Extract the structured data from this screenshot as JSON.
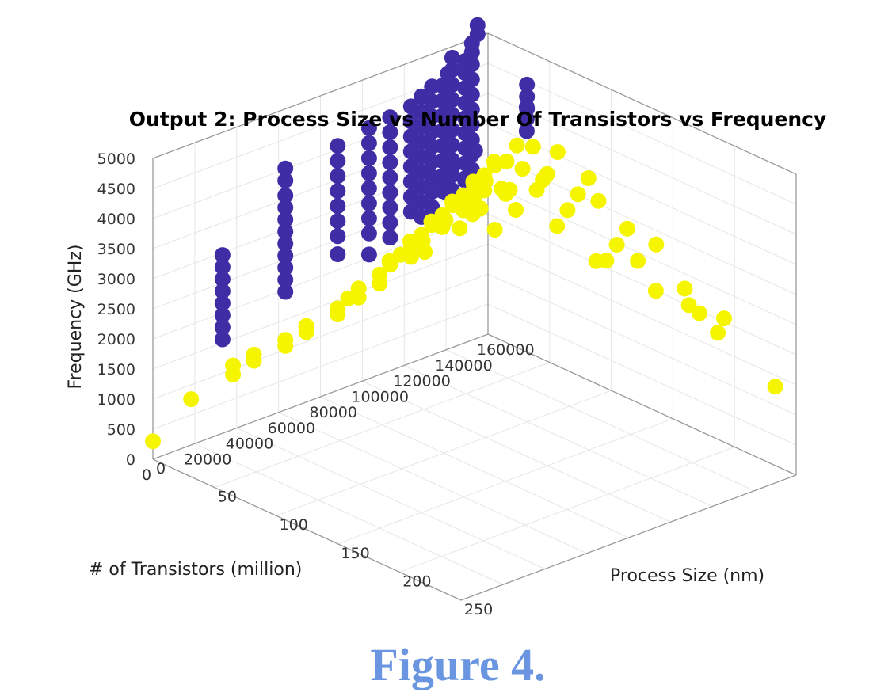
{
  "chart_data": {
    "type": "scatter3d",
    "title": "Output 2: Process Size vs Number Of Transistors vs Frequency",
    "x_axis": {
      "label": "# of Transistors (million)",
      "range": [
        0,
        160000
      ],
      "ticks": [
        "0",
        "20000",
        "40000",
        "60000",
        "80000",
        "100000",
        "120000",
        "140000",
        "160000"
      ]
    },
    "y_axis": {
      "label": "Process Size (nm)",
      "range": [
        0,
        250
      ],
      "ticks": [
        "0",
        "50",
        "100",
        "150",
        "200",
        "250"
      ]
    },
    "z_axis": {
      "label": "Frequency (GHz)",
      "range": [
        0,
        5000
      ],
      "ticks": [
        "0",
        "500",
        "1000",
        "1500",
        "2000",
        "2500",
        "3000",
        "3500",
        "4000",
        "4500",
        "5000"
      ]
    },
    "grid": true,
    "series": [
      {
        "color": "#3f2da6",
        "points": [
          [
            155000,
            0,
            5200
          ],
          [
            155000,
            0,
            5050
          ],
          [
            150000,
            4,
            5000
          ],
          [
            150000,
            4,
            4850
          ],
          [
            150000,
            4,
            4650
          ],
          [
            150000,
            4,
            4400
          ],
          [
            150000,
            4,
            4150
          ],
          [
            150000,
            4,
            3900
          ],
          [
            150000,
            4,
            3650
          ],
          [
            150000,
            4,
            3400
          ],
          [
            150000,
            4,
            3150
          ],
          [
            150000,
            4,
            2900
          ],
          [
            145000,
            7,
            4800
          ],
          [
            145000,
            7,
            4600
          ],
          [
            145000,
            7,
            4350
          ],
          [
            145000,
            7,
            4100
          ],
          [
            145000,
            7,
            3850
          ],
          [
            145000,
            7,
            3600
          ],
          [
            145000,
            7,
            3350
          ],
          [
            145000,
            7,
            3100
          ],
          [
            145000,
            7,
            2850
          ],
          [
            140000,
            5,
            4900
          ],
          [
            140000,
            5,
            4700
          ],
          [
            140000,
            5,
            4450
          ],
          [
            140000,
            5,
            4200
          ],
          [
            140000,
            5,
            3950
          ],
          [
            140000,
            5,
            3700
          ],
          [
            140000,
            5,
            3450
          ],
          [
            140000,
            5,
            3200
          ],
          [
            140000,
            5,
            2950
          ],
          [
            140000,
            5,
            2700
          ],
          [
            135000,
            10,
            4750
          ],
          [
            135000,
            10,
            4500
          ],
          [
            135000,
            10,
            4250
          ],
          [
            135000,
            10,
            4000
          ],
          [
            135000,
            10,
            3750
          ],
          [
            135000,
            10,
            3500
          ],
          [
            135000,
            10,
            3250
          ],
          [
            135000,
            10,
            3000
          ],
          [
            135000,
            10,
            2750
          ],
          [
            130000,
            14,
            4650
          ],
          [
            130000,
            14,
            4400
          ],
          [
            130000,
            14,
            4150
          ],
          [
            130000,
            14,
            3900
          ],
          [
            130000,
            14,
            3650
          ],
          [
            130000,
            14,
            3400
          ],
          [
            130000,
            14,
            3150
          ],
          [
            130000,
            14,
            2900
          ],
          [
            125000,
            14,
            4700
          ],
          [
            125000,
            14,
            4450
          ],
          [
            125000,
            14,
            4200
          ],
          [
            125000,
            14,
            3950
          ],
          [
            125000,
            14,
            3700
          ],
          [
            125000,
            14,
            3450
          ],
          [
            125000,
            14,
            3200
          ],
          [
            125000,
            14,
            2950
          ],
          [
            125000,
            14,
            2700
          ],
          [
            125000,
            14,
            2450
          ],
          [
            120000,
            14,
            4600
          ],
          [
            120000,
            14,
            4350
          ],
          [
            120000,
            14,
            4100
          ],
          [
            120000,
            14,
            3850
          ],
          [
            120000,
            14,
            3600
          ],
          [
            120000,
            14,
            3350
          ],
          [
            120000,
            14,
            3100
          ],
          [
            120000,
            14,
            2850
          ],
          [
            120000,
            14,
            2600
          ],
          [
            115000,
            14,
            4500
          ],
          [
            115000,
            14,
            4250
          ],
          [
            115000,
            14,
            4000
          ],
          [
            115000,
            14,
            3750
          ],
          [
            115000,
            14,
            3500
          ],
          [
            115000,
            14,
            3250
          ],
          [
            115000,
            14,
            3000
          ],
          [
            115000,
            14,
            2750
          ],
          [
            105000,
            14,
            4450
          ],
          [
            105000,
            14,
            4200
          ],
          [
            105000,
            14,
            3950
          ],
          [
            105000,
            14,
            3700
          ],
          [
            105000,
            14,
            3450
          ],
          [
            105000,
            14,
            3200
          ],
          [
            105000,
            14,
            2950
          ],
          [
            105000,
            14,
            2700
          ],
          [
            105000,
            14,
            2450
          ],
          [
            95000,
            14,
            4400
          ],
          [
            95000,
            14,
            4150
          ],
          [
            95000,
            14,
            3900
          ],
          [
            95000,
            14,
            3650
          ],
          [
            95000,
            14,
            3400
          ],
          [
            95000,
            14,
            3150
          ],
          [
            95000,
            14,
            2900
          ],
          [
            95000,
            14,
            2650
          ],
          [
            95000,
            14,
            2300
          ],
          [
            80000,
            14,
            4300
          ],
          [
            80000,
            14,
            4050
          ],
          [
            80000,
            14,
            3800
          ],
          [
            80000,
            14,
            3550
          ],
          [
            80000,
            14,
            3300
          ],
          [
            80000,
            14,
            3050
          ],
          [
            80000,
            14,
            2800
          ],
          [
            80000,
            14,
            2500
          ],
          [
            55000,
            14,
            4250
          ],
          [
            55000,
            14,
            4050
          ],
          [
            55000,
            14,
            3800
          ],
          [
            55000,
            14,
            3600
          ],
          [
            55000,
            14,
            3400
          ],
          [
            55000,
            14,
            3200
          ],
          [
            55000,
            14,
            3000
          ],
          [
            55000,
            14,
            2800
          ],
          [
            55000,
            14,
            2600
          ],
          [
            55000,
            14,
            2400
          ],
          [
            55000,
            14,
            2200
          ],
          [
            25000,
            14,
            3200
          ],
          [
            25000,
            14,
            3000
          ],
          [
            25000,
            14,
            2800
          ],
          [
            25000,
            14,
            2600
          ],
          [
            25000,
            14,
            2400
          ],
          [
            25000,
            14,
            2200
          ],
          [
            25000,
            14,
            2000
          ],
          [
            25000,
            14,
            1800
          ],
          [
            152000,
            45,
            4300
          ],
          [
            152000,
            45,
            4100
          ],
          [
            152000,
            45,
            3900
          ],
          [
            158000,
            35,
            4500
          ],
          [
            158000,
            35,
            4300
          ],
          [
            158000,
            35,
            4100
          ],
          [
            138000,
            10,
            3200
          ],
          [
            142000,
            12,
            2900
          ],
          [
            148000,
            10,
            3300
          ],
          [
            132000,
            10,
            3000
          ]
        ]
      },
      {
        "color": "#f5f500",
        "points": [
          [
            0,
            0,
            300
          ],
          [
            10000,
            14,
            1000
          ],
          [
            30000,
            14,
            1300
          ],
          [
            30000,
            14,
            1150
          ],
          [
            40000,
            14,
            1350
          ],
          [
            40000,
            14,
            1250
          ],
          [
            55000,
            14,
            1400
          ],
          [
            55000,
            14,
            1300
          ],
          [
            65000,
            14,
            1500
          ],
          [
            65000,
            14,
            1400
          ],
          [
            80000,
            14,
            1600
          ],
          [
            80000,
            14,
            1500
          ],
          [
            85000,
            14,
            1700
          ],
          [
            90000,
            14,
            1800
          ],
          [
            90000,
            14,
            1650
          ],
          [
            100000,
            14,
            1900
          ],
          [
            100000,
            14,
            1750
          ],
          [
            105000,
            14,
            2000
          ],
          [
            110000,
            14,
            2100
          ],
          [
            115000,
            14,
            2200
          ],
          [
            115000,
            14,
            2000
          ],
          [
            120000,
            14,
            2300
          ],
          [
            125000,
            14,
            2400
          ],
          [
            130000,
            14,
            2500
          ],
          [
            130000,
            14,
            2300
          ],
          [
            135000,
            14,
            2600
          ],
          [
            140000,
            14,
            2700
          ],
          [
            140000,
            14,
            2450
          ],
          [
            145000,
            14,
            2800
          ],
          [
            145000,
            14,
            2550
          ],
          [
            150000,
            14,
            2900
          ],
          [
            150000,
            14,
            2650
          ],
          [
            155000,
            14,
            3000
          ],
          [
            100000,
            22,
            2200
          ],
          [
            110000,
            22,
            2400
          ],
          [
            120000,
            22,
            2600
          ],
          [
            130000,
            22,
            2800
          ],
          [
            140000,
            22,
            3000
          ],
          [
            150000,
            22,
            3200
          ],
          [
            110000,
            32,
            2500
          ],
          [
            120000,
            32,
            2700
          ],
          [
            130000,
            32,
            2900
          ],
          [
            140000,
            32,
            3100
          ],
          [
            150000,
            32,
            3300
          ],
          [
            155000,
            32,
            3500
          ],
          [
            120000,
            45,
            2700
          ],
          [
            130000,
            45,
            2900
          ],
          [
            140000,
            45,
            3100
          ],
          [
            150000,
            45,
            3300
          ],
          [
            155000,
            45,
            3600
          ],
          [
            125000,
            65,
            2800
          ],
          [
            135000,
            65,
            3000
          ],
          [
            145000,
            65,
            3200
          ],
          [
            150000,
            65,
            3400
          ],
          [
            155000,
            65,
            3700
          ],
          [
            140000,
            90,
            2900
          ],
          [
            145000,
            90,
            3100
          ],
          [
            150000,
            90,
            3300
          ],
          [
            155000,
            90,
            3500
          ],
          [
            140000,
            130,
            2700
          ],
          [
            145000,
            130,
            2900
          ],
          [
            150000,
            130,
            3100
          ],
          [
            155000,
            130,
            2500
          ],
          [
            150000,
            180,
            2300
          ],
          [
            155000,
            180,
            2100
          ],
          [
            148000,
            180,
            2600
          ],
          [
            152000,
            200,
            2000
          ],
          [
            155000,
            200,
            2200
          ],
          [
            150000,
            250,
            1600
          ],
          [
            135000,
            30,
            2600
          ],
          [
            145000,
            40,
            2900
          ],
          [
            138000,
            55,
            3200
          ],
          [
            128000,
            20,
            2500
          ],
          [
            118000,
            20,
            2100
          ],
          [
            142000,
            75,
            3500
          ],
          [
            148000,
            110,
            3400
          ],
          [
            152000,
            150,
            3000
          ],
          [
            146000,
            160,
            2400
          ],
          [
            144000,
            115,
            2500
          ]
        ]
      }
    ]
  },
  "caption": "Figure 4."
}
